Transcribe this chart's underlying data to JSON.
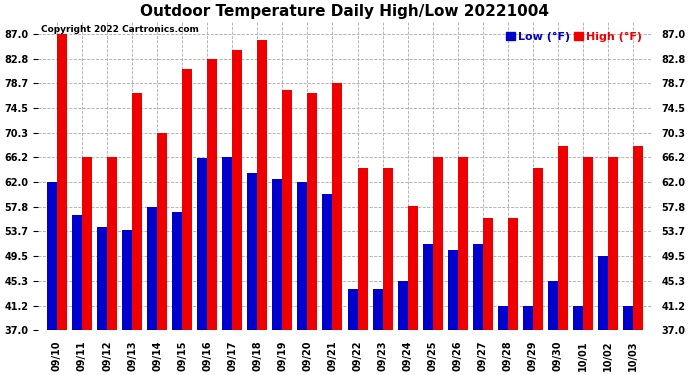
{
  "title": "Outdoor Temperature Daily High/Low 20221004",
  "copyright": "Copyright 2022 Cartronics.com",
  "legend_low": "Low (°F)",
  "legend_high": "High (°F)",
  "low_color": "#0000cc",
  "high_color": "#ee0000",
  "background_color": "#ffffff",
  "grid_color": "#aaaaaa",
  "dates": [
    "09/10",
    "09/11",
    "09/12",
    "09/13",
    "09/14",
    "09/15",
    "09/16",
    "09/17",
    "09/18",
    "09/19",
    "09/20",
    "09/21",
    "09/22",
    "09/23",
    "09/24",
    "09/25",
    "09/26",
    "09/27",
    "09/28",
    "09/29",
    "09/30",
    "10/01",
    "10/02",
    "10/03"
  ],
  "highs": [
    87.0,
    66.2,
    66.2,
    77.0,
    70.3,
    81.0,
    82.8,
    84.2,
    86.0,
    77.5,
    77.0,
    78.7,
    64.4,
    64.4,
    58.0,
    66.2,
    66.2,
    56.0,
    56.0,
    64.4,
    68.0,
    66.2,
    66.2,
    68.0
  ],
  "lows": [
    62.0,
    56.5,
    54.5,
    54.0,
    57.8,
    57.0,
    66.0,
    66.2,
    63.5,
    62.5,
    62.0,
    60.0,
    44.0,
    44.0,
    45.3,
    51.5,
    50.5,
    51.5,
    41.2,
    41.2,
    45.3,
    41.2,
    49.5,
    41.2
  ],
  "ylim_min": 37.0,
  "ylim_max": 89.0,
  "yticks": [
    37.0,
    41.2,
    45.3,
    49.5,
    53.7,
    57.8,
    62.0,
    66.2,
    70.3,
    74.5,
    78.7,
    82.8,
    87.0
  ],
  "bar_width": 0.4,
  "title_fontsize": 11,
  "tick_fontsize": 7,
  "legend_fontsize": 8,
  "copyright_fontsize": 6.5
}
